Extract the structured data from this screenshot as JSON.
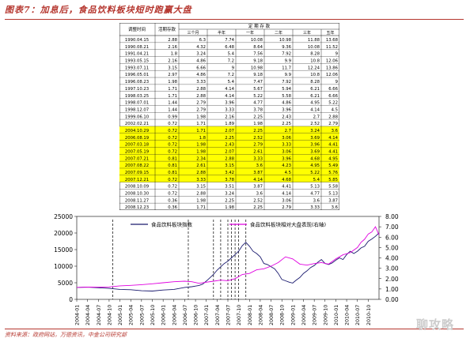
{
  "figure_title": "图表7：加息后，食品饮料板块短时跑赢大盘",
  "footer": "资料来源：政府网站，万德资讯，中金公司研究部",
  "watermark": "聊攻略",
  "table": {
    "col_date": "调整时间",
    "col_demand": "活期存款",
    "group_header": "定 期 存 款",
    "sub_headers": [
      "三个月",
      "半年",
      "一年",
      "二年",
      "三年",
      "五年"
    ],
    "highlight_color": "#ffff00",
    "rows": [
      {
        "date": "1990.04.15",
        "vals": [
          "2.88",
          "6.3",
          "7.74",
          "10.08",
          "10.98",
          "11.88",
          "13.68"
        ],
        "hl": false
      },
      {
        "date": "1990.08.21",
        "vals": [
          "2.16",
          "4.32",
          "6.48",
          "8.64",
          "9.36",
          "10.08",
          "11.52"
        ],
        "hl": false
      },
      {
        "date": "1991.04.21",
        "vals": [
          "1.8",
          "3.24",
          "5.4",
          "7.56",
          "7.92",
          "8.28",
          "9"
        ],
        "hl": false
      },
      {
        "date": "1993.05.15",
        "vals": [
          "2.16",
          "4.86",
          "7.2",
          "9.18",
          "9.9",
          "10.8",
          "12.06"
        ],
        "hl": false
      },
      {
        "date": "1993.07.11",
        "vals": [
          "3.15",
          "6.66",
          "9",
          "10.98",
          "11.7",
          "12.24",
          "13.86"
        ],
        "hl": false
      },
      {
        "date": "1996.05.01",
        "vals": [
          "2.97",
          "4.86",
          "7.2",
          "9.18",
          "9.9",
          "10.8",
          "12.06"
        ],
        "hl": false
      },
      {
        "date": "1996.08.23",
        "vals": [
          "1.98",
          "3.33",
          "5.4",
          "7.47",
          "7.92",
          "8.28",
          "9"
        ],
        "hl": false
      },
      {
        "date": "1997.10.23",
        "vals": [
          "1.71",
          "2.88",
          "4.14",
          "5.67",
          "5.94",
          "6.21",
          "6.66"
        ],
        "hl": false
      },
      {
        "date": "1998.03.25",
        "vals": [
          "1.71",
          "2.88",
          "4.14",
          "5.22",
          "5.58",
          "6.21",
          "6.66"
        ],
        "hl": false
      },
      {
        "date": "1998.07.01",
        "vals": [
          "1.44",
          "2.79",
          "3.96",
          "4.77",
          "4.86",
          "4.95",
          "5.22"
        ],
        "hl": false
      },
      {
        "date": "1998.12.07",
        "vals": [
          "1.44",
          "2.79",
          "3.33",
          "3.78",
          "3.96",
          "4.14",
          "4.5"
        ],
        "hl": false
      },
      {
        "date": "1999.06.10",
        "vals": [
          "0.99",
          "1.98",
          "2.16",
          "2.25",
          "2.43",
          "2.7",
          "2.88"
        ],
        "hl": false
      },
      {
        "date": "2002.02.21",
        "vals": [
          "0.72",
          "1.71",
          "1.89",
          "1.98",
          "2.25",
          "2.52",
          "2.79"
        ],
        "hl": false
      },
      {
        "date": "2004.10.29",
        "vals": [
          "0.72",
          "1.71",
          "2.07",
          "2.25",
          "2.7",
          "3.24",
          "3.6"
        ],
        "hl": true
      },
      {
        "date": "2006.08.19",
        "vals": [
          "0.72",
          "1.8",
          "2.25",
          "2.52",
          "3.06",
          "3.69",
          "4.14"
        ],
        "hl": true
      },
      {
        "date": "2007.03.18",
        "vals": [
          "0.72",
          "1.98",
          "2.43",
          "2.79",
          "3.33",
          "3.96",
          "4.41"
        ],
        "hl": true
      },
      {
        "date": "2007.05.19",
        "vals": [
          "0.72",
          "1.98",
          "2.07",
          "2.61",
          "3.06",
          "3.69",
          "4.41"
        ],
        "hl": true
      },
      {
        "date": "2007.07.21",
        "vals": [
          "0.81",
          "2.34",
          "2.88",
          "3.33",
          "3.96",
          "4.68",
          "4.95"
        ],
        "hl": true
      },
      {
        "date": "2007.08.22",
        "vals": [
          "0.81",
          "2.61",
          "3.15",
          "3.6",
          "4.23",
          "4.95",
          "5.49"
        ],
        "hl": true
      },
      {
        "date": "2007.09.15",
        "vals": [
          "0.81",
          "2.88",
          "3.42",
          "3.87",
          "4.5",
          "5.22",
          "5.76"
        ],
        "hl": true
      },
      {
        "date": "2007.12.21",
        "vals": [
          "0.72",
          "3.33",
          "3.78",
          "4.14",
          "4.68",
          "5.4",
          "5.85"
        ],
        "hl": true
      },
      {
        "date": "2008.10.09",
        "vals": [
          "0.72",
          "3.15",
          "3.51",
          "3.87",
          "4.41",
          "5.13",
          "5.58"
        ],
        "hl": false
      },
      {
        "date": "2008.10.30",
        "vals": [
          "0.72",
          "2.88",
          "3.24",
          "3.6",
          "4.14",
          "4.77",
          "5.13"
        ],
        "hl": false
      },
      {
        "date": "2008.11.27",
        "vals": [
          "0.36",
          "1.98",
          "2.25",
          "2.52",
          "3.06",
          "3.6",
          "3.87"
        ],
        "hl": false
      },
      {
        "date": "2008.12.23",
        "vals": [
          "0.36",
          "1.71",
          "1.98",
          "2.25",
          "2.79",
          "3.33",
          "3.6"
        ],
        "hl": false
      }
    ]
  },
  "chart_data": {
    "type": "line",
    "y_left": {
      "min": 0,
      "max": 25000,
      "ticks": [
        "0",
        "5000",
        "10000",
        "15000",
        "20000",
        "25000"
      ]
    },
    "y_right": {
      "min": 0,
      "max": 8,
      "ticks": [
        "0.00",
        "1.00",
        "2.00",
        "3.00",
        "4.00",
        "5.00",
        "6.00",
        "7.00",
        "8.00"
      ]
    },
    "x_ticks": [
      "2004-01",
      "2004-04",
      "2004-07",
      "2004-10",
      "2005-01",
      "2005-04",
      "2005-07",
      "2005-10",
      "2006-01",
      "2006-04",
      "2006-07",
      "2006-10",
      "2007-01",
      "2007-04",
      "2007-07",
      "2007-10",
      "2008-01",
      "2008-04",
      "2008-07",
      "2008-10",
      "2009-01",
      "2009-04",
      "2009-07",
      "2009-10",
      "2010-01",
      "2010-04",
      "2010-07",
      "2010-10"
    ],
    "series": [
      {
        "name": "食品饮料板块指数",
        "color": "#1a1a6e",
        "axis": "left",
        "x": [
          0,
          3,
          6,
          9,
          12,
          15,
          18,
          21,
          24,
          27,
          30,
          31,
          32,
          33,
          34,
          35,
          36,
          37,
          38,
          39,
          40,
          41,
          42,
          43,
          44,
          45,
          46,
          47,
          48,
          49,
          50,
          51,
          52,
          53,
          54,
          55,
          56,
          57,
          58,
          59,
          60,
          61,
          62,
          63,
          64,
          65,
          66,
          67,
          68,
          69,
          70,
          71,
          72,
          73,
          74,
          75,
          76,
          77,
          78,
          79,
          80,
          81,
          82,
          83,
          84
        ],
        "y": [
          3600,
          3700,
          3500,
          3300,
          3000,
          2900,
          2600,
          2500,
          2800,
          3000,
          3600,
          3700,
          3800,
          4000,
          4200,
          4600,
          5500,
          6500,
          7500,
          8800,
          9800,
          10800,
          11500,
          12500,
          13500,
          14500,
          16200,
          17200,
          16000,
          14500,
          13800,
          12800,
          10800,
          10500,
          9800,
          9200,
          7800,
          6000,
          5600,
          5200,
          4900,
          5800,
          6600,
          7800,
          8600,
          9600,
          10200,
          11200,
          12000,
          10800,
          10500,
          11000,
          11800,
          12500,
          12000,
          13500,
          14500,
          13800,
          14500,
          15500,
          16000,
          17500,
          18200,
          19000,
          20000
        ]
      },
      {
        "name": "食品饮料板块相对大盘表现(右轴)",
        "color": "#e000e0",
        "axis": "right",
        "x": [
          0,
          3,
          6,
          9,
          12,
          15,
          18,
          21,
          24,
          27,
          30,
          32,
          34,
          36,
          38,
          40,
          42,
          44,
          46,
          48,
          50,
          52,
          54,
          56,
          58,
          60,
          62,
          64,
          66,
          68,
          70,
          72,
          74,
          76,
          78,
          79,
          80,
          81,
          82,
          83,
          84
        ],
        "y": [
          1.15,
          1.18,
          1.17,
          1.2,
          1.3,
          1.35,
          1.42,
          1.5,
          1.6,
          1.7,
          1.75,
          1.7,
          1.55,
          1.65,
          1.75,
          1.85,
          1.8,
          2.0,
          2.4,
          2.5,
          2.85,
          2.95,
          3.2,
          3.55,
          4.1,
          3.9,
          3.4,
          3.3,
          3.45,
          3.55,
          3.4,
          3.9,
          4.3,
          4.5,
          5.0,
          5.5,
          5.8,
          6.3,
          6.5,
          7.0,
          6.2
        ]
      }
    ],
    "event_months": [
      10,
      31,
      38,
      40,
      42,
      43,
      44,
      45,
      47
    ]
  }
}
